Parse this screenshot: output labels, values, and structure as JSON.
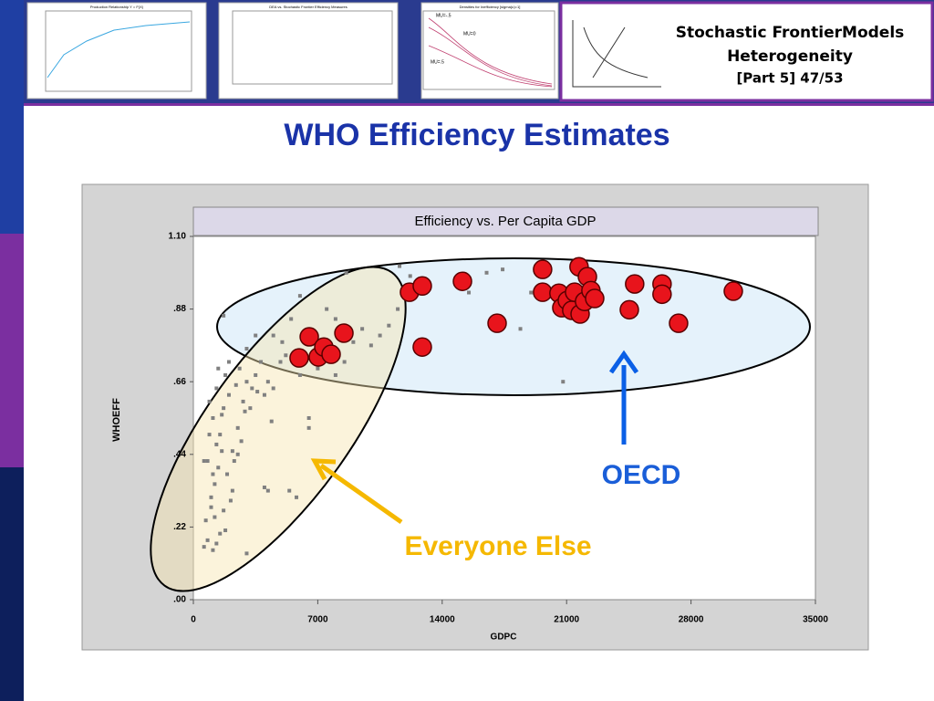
{
  "header": {
    "line1": "Stochastic FrontierModels",
    "line2": "Heterogeneity",
    "line3": "[Part 5]   47/53",
    "thumbnails": [
      "Production Relationship Y = F(X)",
      "DEA vs. Stochastic Frontier Efficiency Measures",
      "Densities for Inefficiency [sigma(u)=1]"
    ],
    "thumb_labels": [
      "MU=-.5",
      "MU=0",
      "MU=.5"
    ]
  },
  "slide_title": "WHO Efficiency Estimates",
  "chart_data": {
    "type": "scatter",
    "title": "Efficiency vs. Per Capita GDP",
    "x_label": "GDPC",
    "y_label": "WHOEFF",
    "xlim": [
      0,
      35000
    ],
    "xticks": [
      0,
      7000,
      14000,
      21000,
      28000,
      35000
    ],
    "ylim": [
      0,
      1.1
    ],
    "yticks": [
      {
        "value": 0,
        "label": ".00"
      },
      {
        "value": 0.22,
        "label": ".22"
      },
      {
        "value": 0.44,
        "label": ".44"
      },
      {
        "value": 0.66,
        "label": ".66"
      },
      {
        "value": 0.88,
        "label": ".88"
      },
      {
        "value": 1.1,
        "label": "1.10"
      }
    ],
    "annotations": [
      "Everyone Else",
      "OECD"
    ],
    "series": [
      {
        "color": "#808080",
        "x": [
          1000,
          1200,
          800,
          1500,
          1100,
          900,
          1300,
          1700,
          2000,
          1600,
          1400,
          1000,
          1200,
          800,
          1100,
          1300,
          1500,
          2200,
          2500,
          2800,
          3000,
          2600,
          2000,
          1800,
          1400,
          2400,
          3200,
          3500,
          4000,
          4200,
          4500,
          3800,
          3000,
          3500,
          4500,
          5000,
          5500,
          5200,
          6000,
          6500,
          6500,
          4400,
          5400,
          4200,
          4000,
          5800,
          3000,
          1900,
          2100,
          1700,
          2300,
          1300,
          900,
          600,
          700,
          1600,
          2700,
          3300,
          8000,
          7500,
          9000,
          9500,
          10000,
          10500,
          11000,
          11500,
          8500,
          8000,
          7000,
          6500,
          8600,
          11600,
          12200,
          17400,
          16500,
          15500,
          18400,
          19000,
          20800,
          22500,
          1700,
          6000,
          4900,
          3600,
          2900,
          2500,
          1100,
          600,
          1800,
          2200
        ],
        "values": [
          0.28,
          0.35,
          0.42,
          0.5,
          0.55,
          0.6,
          0.64,
          0.58,
          0.62,
          0.45,
          0.4,
          0.31,
          0.25,
          0.18,
          0.15,
          0.17,
          0.2,
          0.45,
          0.52,
          0.6,
          0.66,
          0.7,
          0.72,
          0.68,
          0.7,
          0.65,
          0.58,
          0.68,
          0.62,
          0.66,
          0.64,
          0.72,
          0.76,
          0.8,
          0.8,
          0.78,
          0.85,
          0.74,
          0.68,
          0.52,
          0.55,
          0.54,
          0.33,
          0.33,
          0.34,
          0.31,
          0.14,
          0.38,
          0.3,
          0.27,
          0.42,
          0.47,
          0.5,
          0.42,
          0.24,
          0.56,
          0.48,
          0.64,
          0.85,
          0.88,
          0.78,
          0.82,
          0.77,
          0.8,
          0.83,
          0.88,
          0.72,
          0.68,
          0.7,
          0.73,
          0.99,
          1.01,
          0.98,
          1.0,
          0.99,
          0.93,
          0.82,
          0.93,
          0.66,
          0.98,
          0.86,
          0.92,
          0.72,
          0.63,
          0.57,
          0.44,
          0.38,
          0.16,
          0.21,
          0.33
        ]
      },
      {
        "color": "#e8141c",
        "x": [
          5950,
          6520,
          7030,
          7340,
          7750,
          8470,
          12160,
          12880,
          12880,
          15140,
          17090,
          19650,
          19650,
          20570,
          20730,
          21040,
          21290,
          21450,
          21700,
          21760,
          22010,
          22170,
          22370,
          22580,
          24530,
          24830,
          26370,
          26370,
          27300,
          30380
        ],
        "values": [
          0.732,
          0.796,
          0.735,
          0.765,
          0.743,
          0.807,
          0.931,
          0.95,
          0.765,
          0.964,
          0.837,
          1.0,
          0.931,
          0.928,
          0.884,
          0.906,
          0.876,
          0.931,
          1.008,
          0.865,
          0.903,
          0.978,
          0.936,
          0.912,
          0.878,
          0.956,
          0.956,
          0.925,
          0.837,
          0.934
        ]
      }
    ]
  }
}
